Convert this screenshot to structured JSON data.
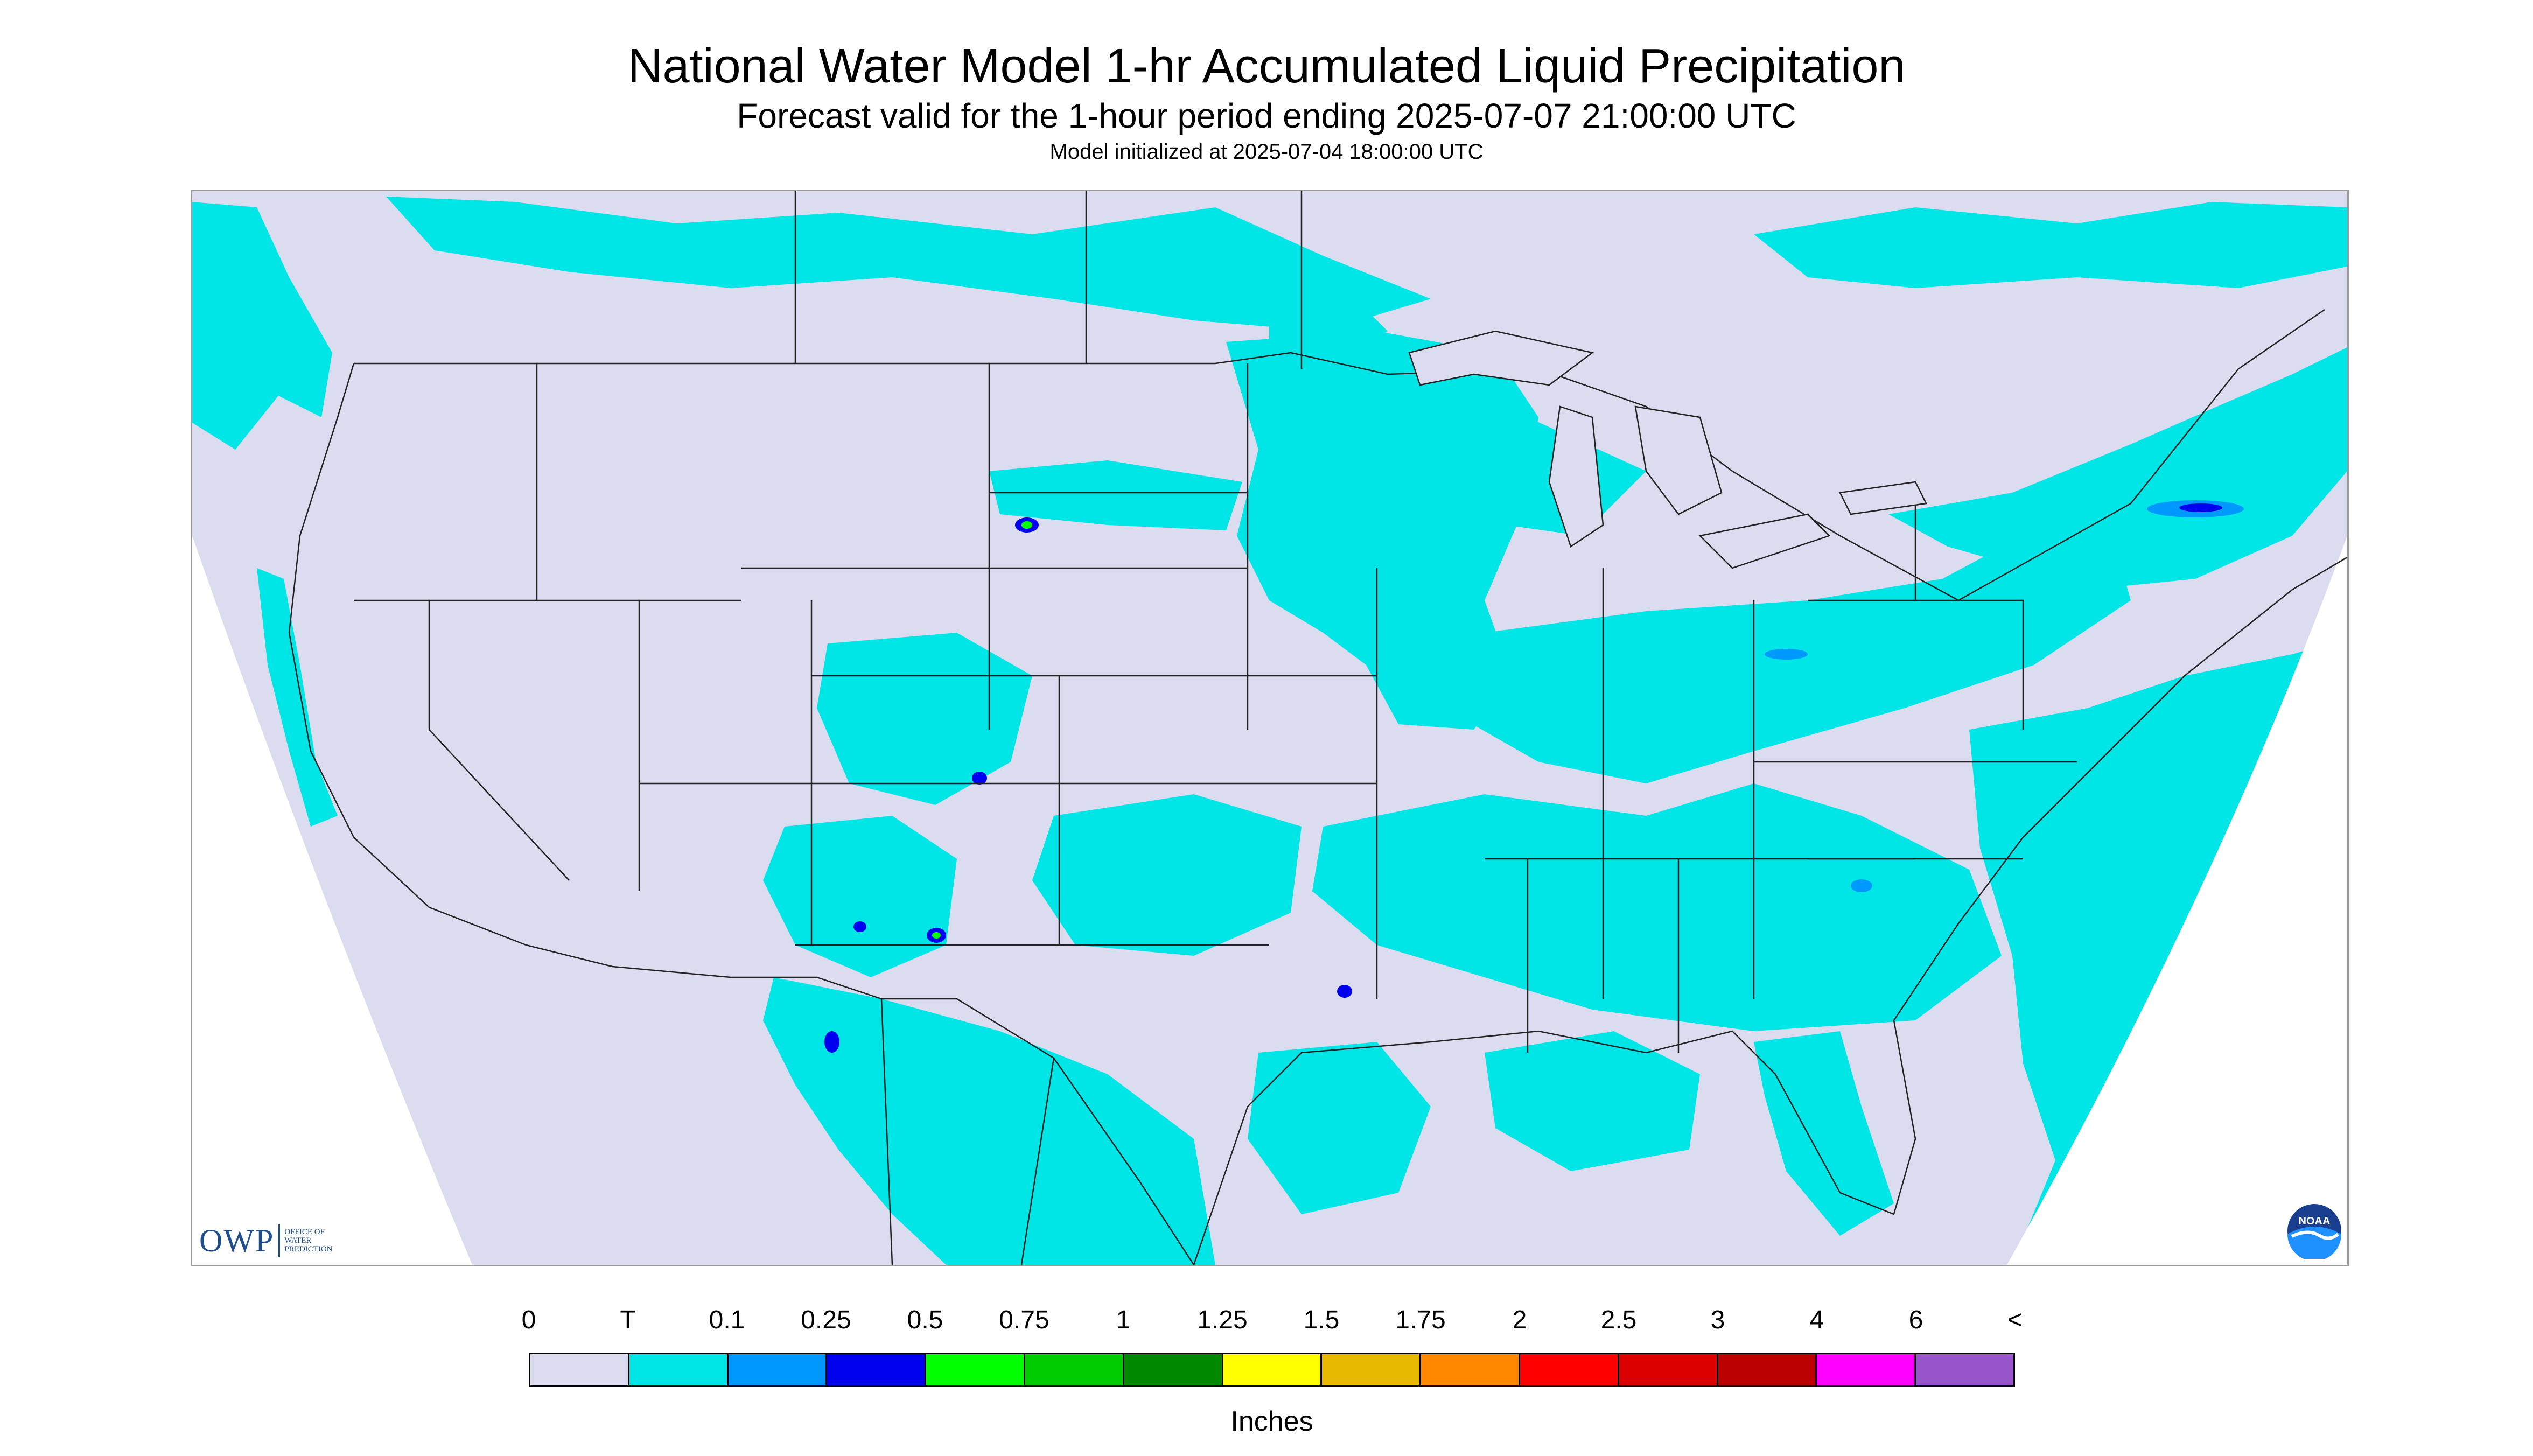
{
  "header": {
    "title": "National Water Model 1-hr Accumulated Liquid Precipitation",
    "subtitle": "Forecast valid for the 1-hour period ending 2025-07-07 21:00:00 UTC",
    "init_note": "Model initialized at 2025-07-04 18:00:00 UTC"
  },
  "logos": {
    "owp_mark": "OWP",
    "owp_text": [
      "OFFICE OF",
      "WATER",
      "PREDICTION"
    ],
    "noaa_text": "NOAA"
  },
  "legend": {
    "tick_labels": [
      "0",
      "T",
      "0.1",
      "0.25",
      "0.5",
      "0.75",
      "1",
      "1.25",
      "1.5",
      "1.75",
      "2",
      "2.5",
      "3",
      "4",
      "6",
      "<"
    ],
    "colors": [
      "#dcdcf0",
      "#00e6e6",
      "#0099ff",
      "#0000ee",
      "#00ff00",
      "#00cc00",
      "#008800",
      "#ffff00",
      "#e6b800",
      "#ff8800",
      "#ff0000",
      "#dd0000",
      "#bb0000",
      "#ff00ff",
      "#9955cc"
    ],
    "units": "Inches"
  },
  "map": {
    "no_data_color": "#dcdcf0",
    "trace_color": "#00e6e6",
    "trace_regions": [
      "Pacific Northwest coast and British Columbia",
      "Canadian Prairies and Northern Plains",
      "Minnesota and Upper Great Lakes",
      "Ohio Valley and Mid-Atlantic",
      "New England and southeastern Canada",
      "Southeast and Gulf Coast",
      "Florida",
      "Western Atlantic Ocean",
      "Sierra Madre, Mexico",
      "Central Plains and Texas panhandle",
      "Colorado and New Mexico"
    ],
    "heavier_spots": [
      {
        "region": "South Dakota",
        "max_bin": "0.5"
      },
      {
        "region": "Colorado",
        "max_bin": "0.25"
      },
      {
        "region": "New Mexico",
        "max_bin": "0.5"
      },
      {
        "region": "Louisiana",
        "max_bin": "0.25"
      },
      {
        "region": "North Carolina coast",
        "max_bin": "0.25"
      },
      {
        "region": "Northern New England",
        "max_bin": "0.25"
      },
      {
        "region": "Pennsylvania",
        "max_bin": "0.1"
      },
      {
        "region": "Sonora, Mexico",
        "max_bin": "0.25"
      }
    ]
  }
}
